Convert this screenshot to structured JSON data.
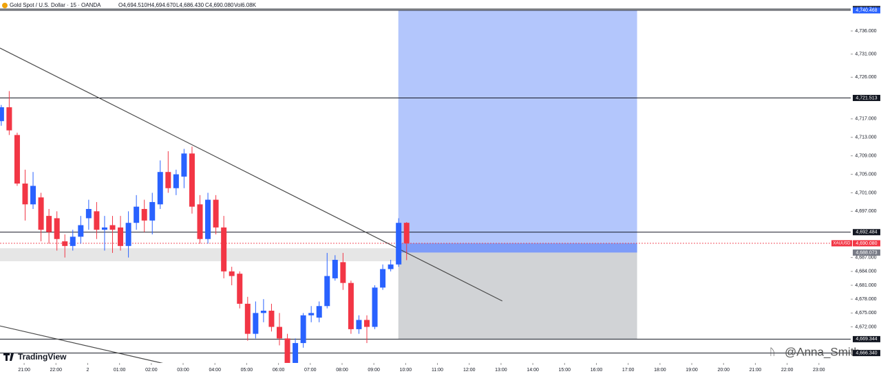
{
  "header": {
    "symbol": "Gold Spot / U.S. Dollar · 15 · OANDA",
    "open": "O4,694.510",
    "high": "H4,694.670",
    "low": "L4,686.430",
    "close": "C4,690.080",
    "volume": "Vol6.08K"
  },
  "branding": {
    "logo": "TradingView",
    "watermark": "@Anna_Smith"
  },
  "chart_data": {
    "type": "candlestick",
    "up_color": "#2962ff",
    "down_color": "#f23645",
    "x": [
      -0.72,
      -0.47,
      -0.22,
      0.03,
      0.28,
      0.53,
      0.78,
      1.03,
      1.28,
      1.53,
      1.78,
      2.03,
      2.28,
      2.53,
      2.78,
      3.03,
      3.28,
      3.53,
      3.78,
      4.03,
      4.28,
      4.53,
      4.78,
      5.03,
      5.28,
      5.53,
      5.78,
      6.03,
      6.28,
      6.53,
      6.78,
      7.03,
      7.28,
      7.53,
      7.78,
      8.03,
      8.28,
      8.53,
      8.78,
      9.03,
      9.28,
      9.53,
      9.78,
      10.03,
      10.28,
      10.53,
      10.78,
      11.03,
      11.28,
      11.53,
      11.78,
      12.03
    ],
    "open": [
      4716.5,
      4719.5,
      4713.5,
      4703,
      4698.5,
      4700,
      4696,
      4695.5,
      4690.5,
      4689.5,
      4691.5,
      4695.5,
      4697,
      4693,
      4694,
      4693.5,
      4689.5,
      4694.5,
      4697.5,
      4695,
      4698.5,
      4705.5,
      4702,
      4704.5,
      4709.5,
      4698.5,
      4691,
      4699.5,
      4693.5,
      4684,
      4683.5,
      4677,
      4670.5,
      4675,
      4675.5,
      4672,
      4669.5,
      4664,
      4668.5,
      4674.5,
      4674,
      4676.5,
      4682.5,
      4686,
      4681.5,
      4671.5,
      4673.5,
      4672,
      4680.5,
      4684.5,
      4685.5,
      4694.51
    ],
    "high": [
      4720,
      4723,
      4714,
      4706,
      4705.5,
      4701,
      4697.5,
      4697,
      4692,
      4693,
      4696,
      4699.5,
      4699,
      4696,
      4696,
      4696,
      4697,
      4700.5,
      4699.5,
      4701,
      4708,
      4710,
      4706,
      4710.5,
      4711,
      4700.5,
      4701,
      4700.5,
      4696,
      4685,
      4684,
      4678.5,
      4677.5,
      4678,
      4677,
      4675,
      4670.5,
      4669.5,
      4675,
      4676.5,
      4677.5,
      4688,
      4687.5,
      4688,
      4682,
      4674.5,
      4674.5,
      4681,
      4685.5,
      4686.5,
      4695.5,
      4694.67
    ],
    "low": [
      4715.5,
      4713.5,
      4702.5,
      4695,
      4697.5,
      4690.5,
      4690,
      4688.5,
      4687,
      4688.5,
      4690,
      4693,
      4691,
      4688.5,
      4688,
      4688.5,
      4687,
      4693,
      4692.5,
      4692,
      4697.5,
      4701,
      4700.5,
      4702,
      4696.5,
      4690,
      4690,
      4692,
      4682.5,
      4681,
      4676,
      4669,
      4669.5,
      4673,
      4671,
      4668,
      4664,
      4663.5,
      4667.5,
      4673,
      4673,
      4676,
      4682,
      4680,
      4670.5,
      4670.5,
      4668.5,
      4671.5,
      4680,
      4684,
      4685,
      4686.43
    ],
    "close": [
      4719.5,
      4714.5,
      4703,
      4698.5,
      4702.5,
      4693,
      4692.5,
      4691,
      4689.5,
      4691.5,
      4694,
      4697.5,
      4693,
      4693.5,
      4693,
      4689.5,
      4694.5,
      4698,
      4695,
      4699,
      4705.5,
      4702,
      4705,
      4709.5,
      4698,
      4691,
      4699.5,
      4693.5,
      4684,
      4683,
      4677,
      4670.5,
      4675,
      4675.5,
      4672,
      4669.5,
      4664,
      4668.5,
      4674.5,
      4675,
      4676.5,
      4683,
      4686.5,
      4681.5,
      4671.5,
      4673.5,
      4672,
      4680.5,
      4684.5,
      4685.5,
      4694.5,
      4690.08
    ],
    "xlim": [
      -0.76,
      26
    ],
    "xticks": [
      {
        "value": 0,
        "label": "21:00"
      },
      {
        "value": 1,
        "label": "22:00"
      },
      2,
      {
        "value": 3,
        "label": "01:00"
      },
      {
        "value": 4,
        "label": "02:00"
      },
      {
        "value": 5,
        "label": "03:00"
      },
      {
        "value": 6,
        "label": "04:00"
      },
      {
        "value": 7,
        "label": "05:00"
      },
      {
        "value": 8,
        "label": "06:00"
      },
      {
        "value": 9,
        "label": "07:00"
      },
      {
        "value": 10,
        "label": "08:00"
      },
      {
        "value": 11,
        "label": "09:00"
      },
      {
        "value": 12,
        "label": "10:00"
      },
      {
        "value": 13,
        "label": "11:00"
      },
      {
        "value": 14,
        "label": "12:00"
      },
      {
        "value": 15,
        "label": "13:00"
      },
      {
        "value": 16,
        "label": "14:00"
      },
      {
        "value": 17,
        "label": "15:00"
      },
      {
        "value": 18,
        "label": "16:00"
      },
      {
        "value": 19,
        "label": "17:00"
      },
      {
        "value": 20,
        "label": "18:00"
      },
      {
        "value": 21,
        "label": "19:00"
      },
      {
        "value": 22,
        "label": "20:00"
      },
      {
        "value": 23,
        "label": "21:00"
      },
      {
        "value": 24,
        "label": "22:00"
      },
      {
        "value": 25,
        "label": "23:00"
      }
    ],
    "ylim": [
      4664.2,
      4742.7
    ],
    "yticks": [
      {
        "value": 4736,
        "label": "4,736.000"
      },
      {
        "value": 4731,
        "label": "4,731.000"
      },
      {
        "value": 4726,
        "label": "4,726.000"
      },
      {
        "value": 4717,
        "label": "4,717.000"
      },
      {
        "value": 4713,
        "label": "4,713.000"
      },
      {
        "value": 4709,
        "label": "4,709.000"
      },
      {
        "value": 4705,
        "label": "4,705.000"
      },
      {
        "value": 4701,
        "label": "4,701.000"
      },
      {
        "value": 4697,
        "label": "4,697.000"
      },
      {
        "value": 4687,
        "label": "4,687.000"
      },
      {
        "value": 4684,
        "label": "4,684.000"
      },
      {
        "value": 4681,
        "label": "4,681.000"
      },
      {
        "value": 4678,
        "label": "4,678.000"
      },
      {
        "value": 4675,
        "label": "4,675.000"
      },
      {
        "value": 4672,
        "label": "4,672.000"
      }
    ],
    "grid": false,
    "levels": [
      {
        "value": 4740.741,
        "label": "4,740.741",
        "color": "#131722"
      },
      {
        "value": 4721.513,
        "label": "4,721.513",
        "color": "#131722"
      },
      {
        "value": 4692.484,
        "label": "4,692.484",
        "color": "#131722"
      },
      {
        "value": 4666.34,
        "label": "4,666.340",
        "color": "#131722"
      }
    ],
    "price": {
      "name": "XAUUSD",
      "value": 4690.08,
      "label": "4,690.080",
      "color": "#f23645"
    },
    "position": {
      "xrange": [
        11.77,
        19.28
      ],
      "target": {
        "value": 4740.468,
        "label": "4,740.468",
        "color": "#2962ff"
      },
      "entry": {
        "value": 4688.073,
        "label": "4,688.073",
        "color": "#787b86"
      },
      "stop": {
        "value": 4669.344,
        "label": "4,669.344",
        "color": "#131722"
      }
    },
    "zone": {
      "xrange": [
        -0.76,
        11.77
      ],
      "range": [
        4686.2,
        4689.0
      ]
    },
    "trendlines": [
      {
        "x": [
          -0.76,
          15.04
        ],
        "y": [
          4732.3,
          4677.6
        ]
      },
      {
        "x": [
          -0.76,
          4.5
        ],
        "y": [
          4672.2,
          4663.9
        ]
      }
    ]
  }
}
